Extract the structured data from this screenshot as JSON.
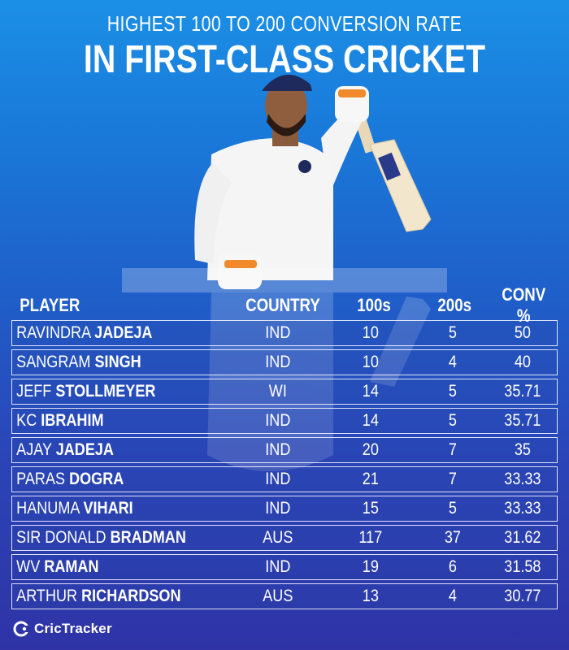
{
  "header": {
    "subtitle": "HIGHEST 100 TO 200 CONVERSION RATE",
    "title": "IN FIRST-CLASS CRICKET"
  },
  "table": {
    "columns": [
      "PLAYER",
      "COUNTRY",
      "100s",
      "200s",
      "CONV %"
    ],
    "rows": [
      {
        "first": "RAVINDRA",
        "last": "JADEJA",
        "country": "IND",
        "hundreds": "10",
        "double_hundreds": "5",
        "conv": "50"
      },
      {
        "first": "SANGRAM",
        "last": "SINGH",
        "country": "IND",
        "hundreds": "10",
        "double_hundreds": "4",
        "conv": "40"
      },
      {
        "first": "JEFF",
        "last": "STOLLMEYER",
        "country": "WI",
        "hundreds": "14",
        "double_hundreds": "5",
        "conv": "35.71"
      },
      {
        "first": "KC",
        "last": "IBRAHIM",
        "country": "IND",
        "hundreds": "14",
        "double_hundreds": "5",
        "conv": "35.71"
      },
      {
        "first": "AJAY",
        "last": "JADEJA",
        "country": "IND",
        "hundreds": "20",
        "double_hundreds": "7",
        "conv": "35"
      },
      {
        "first": "PARAS",
        "last": "DOGRA",
        "country": "IND",
        "hundreds": "21",
        "double_hundreds": "7",
        "conv": "33.33"
      },
      {
        "first": "HANUMA",
        "last": "VIHARI",
        "country": "IND",
        "hundreds": "15",
        "double_hundreds": "5",
        "conv": "33.33"
      },
      {
        "first": "SIR DONALD",
        "last": "BRADMAN",
        "country": "AUS",
        "hundreds": "117",
        "double_hundreds": "37",
        "conv": "31.62"
      },
      {
        "first": "WV",
        "last": "RAMAN",
        "country": "IND",
        "hundreds": "19",
        "double_hundreds": "6",
        "conv": "31.58"
      },
      {
        "first": "ARTHUR",
        "last": "RICHARDSON",
        "country": "AUS",
        "hundreds": "13",
        "double_hundreds": "4",
        "conv": "30.77"
      }
    ]
  },
  "branding": {
    "logo_text": "CricTracker",
    "logo_icon": "crictracker-logo-icon"
  },
  "colors": {
    "background_top": "#1b8fe6",
    "background_bottom": "#2f33a6",
    "text": "#ffffff"
  }
}
